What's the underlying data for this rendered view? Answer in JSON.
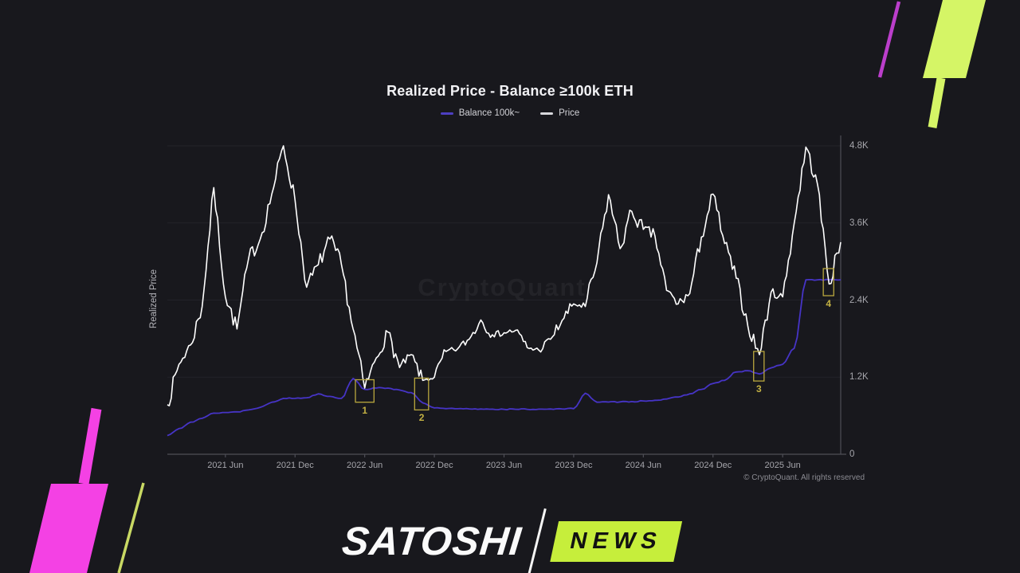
{
  "colors": {
    "background": "#18181d",
    "price_line": "#ffffff",
    "balance_line": "#4634c6",
    "balance_swatch": "#4d3fc2",
    "price_swatch": "#d8d8dc",
    "annotation": "#b9a73e",
    "grid": "#232329",
    "axis": "#4e4e56",
    "magenta_candle": "#f441e4",
    "magenta_line": "#bb3ecb",
    "lime_candle": "#d5f566",
    "lime_line": "#c9d964",
    "logo_badge_bg": "#c6ee3b"
  },
  "chart": {
    "title": "Realized Price - Balance ≥100k ETH",
    "legend": [
      {
        "label": "Balance 100k~"
      },
      {
        "label": "Price"
      }
    ],
    "y_axis_label": "Realized Price",
    "watermark": "CryptoQuant",
    "copyright": "© CryptoQuant. All rights reserved"
  },
  "chart_data": {
    "type": "line",
    "title": "Realized Price - Balance ≥100k ETH",
    "x_start": "2021-01",
    "x_interval": "1 month",
    "n_points": 59,
    "ylim": [
      0,
      4800
    ],
    "y_ticks": [
      {
        "label": "0",
        "value": 0
      },
      {
        "label": "1.2K",
        "value": 1200
      },
      {
        "label": "2.4K",
        "value": 2400
      },
      {
        "label": "3.6K",
        "value": 3600
      },
      {
        "label": "4.8K",
        "value": 4800
      }
    ],
    "x_ticks": [
      {
        "label": "2021 Jun",
        "month": 5
      },
      {
        "label": "2021 Dec",
        "month": 11
      },
      {
        "label": "2022 Jun",
        "month": 17
      },
      {
        "label": "2022 Dec",
        "month": 23
      },
      {
        "label": "2023 Jun",
        "month": 29
      },
      {
        "label": "2023 Dec",
        "month": 35
      },
      {
        "label": "2024 Jun",
        "month": 41
      },
      {
        "label": "2024 Dec",
        "month": 47
      },
      {
        "label": "2025 Jun",
        "month": 53
      }
    ],
    "legend_position": "top",
    "grid": "horizontal-faint",
    "series": [
      {
        "name": "Price",
        "style": "noisy",
        "values": [
          770,
          1400,
          1700,
          2300,
          4150,
          2450,
          1950,
          3050,
          3350,
          4050,
          4800,
          3950,
          2600,
          2950,
          3350,
          2950,
          1950,
          1030,
          1500,
          1900,
          1350,
          1550,
          1150,
          1200,
          1600,
          1640,
          1790,
          2090,
          1860,
          1890,
          1930,
          1660,
          1620,
          1790,
          2080,
          2340,
          2300,
          2980,
          4040,
          3200,
          3780,
          3500,
          3400,
          2550,
          2340,
          2500,
          3380,
          4050,
          3280,
          2740,
          2000,
          1550,
          2520,
          2450,
          3600,
          4780,
          4200,
          2650,
          3300
        ]
      },
      {
        "name": "Balance 100k~",
        "style": "step",
        "values": [
          290,
          400,
          500,
          560,
          640,
          650,
          660,
          690,
          730,
          810,
          870,
          870,
          880,
          940,
          900,
          870,
          1180,
          1010,
          1030,
          1030,
          1000,
          960,
          800,
          720,
          710,
          708,
          706,
          704,
          702,
          700,
          700,
          700,
          702,
          704,
          706,
          710,
          950,
          810,
          812,
          815,
          820,
          830,
          840,
          860,
          890,
          940,
          1010,
          1100,
          1150,
          1280,
          1300,
          1250,
          1345,
          1400,
          1650,
          2715,
          2715,
          2715,
          2715
        ]
      }
    ],
    "annotations": [
      {
        "label": "1",
        "months": [
          16.2,
          17.8
        ],
        "values": [
          810,
          1160
        ]
      },
      {
        "label": "2",
        "months": [
          21.3,
          22.5
        ],
        "values": [
          690,
          1185
        ]
      },
      {
        "label": "3",
        "months": [
          50.5,
          51.4
        ],
        "values": [
          1140,
          1600
        ]
      },
      {
        "label": "4",
        "months": [
          56.5,
          57.4
        ],
        "values": [
          2468,
          2890
        ]
      }
    ]
  },
  "branding": {
    "name": "SATOSHI",
    "badge": "NEWS"
  }
}
